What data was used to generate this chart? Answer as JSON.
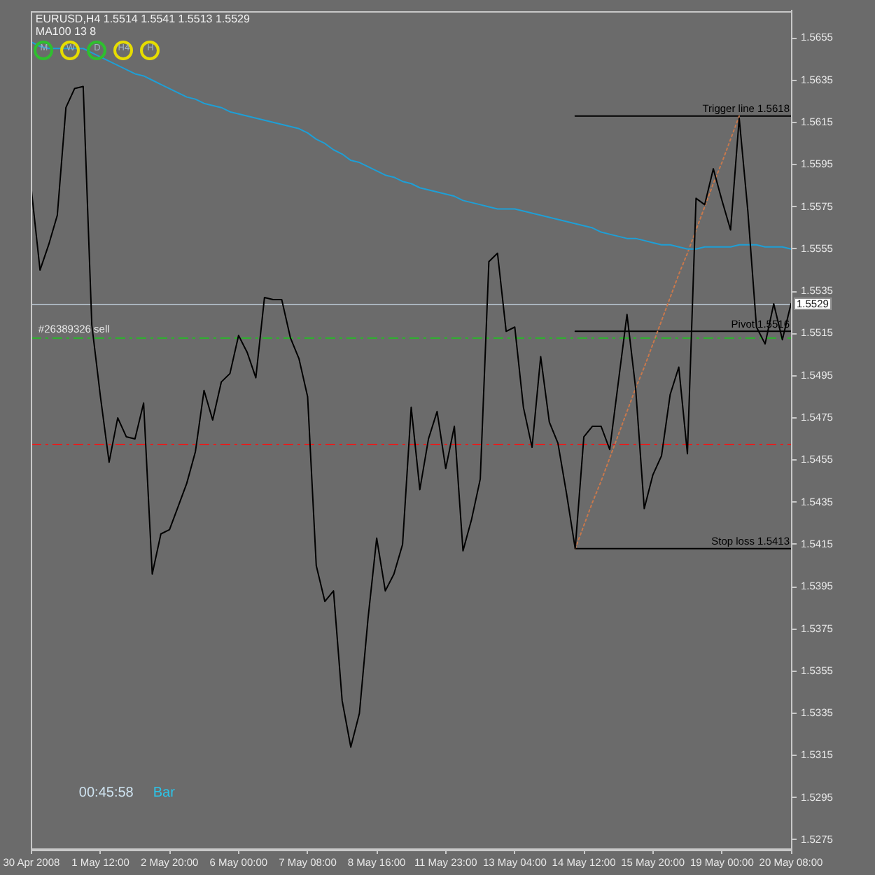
{
  "chart_data": {
    "type": "line",
    "title": "EURUSD,H4  1.5514 1.5541 1.5513 1.5529",
    "subtitle": "MA100 13 8",
    "categories": [
      "30 Apr 2008",
      null,
      null,
      null,
      null,
      null,
      null,
      null,
      "1 May 12:00",
      null,
      null,
      null,
      null,
      null,
      null,
      null,
      "2 May 20:00",
      null,
      null,
      null,
      null,
      null,
      null,
      null,
      "6 May 00:00",
      null,
      null,
      null,
      null,
      null,
      null,
      null,
      "7 May 08:00",
      null,
      null,
      null,
      null,
      null,
      null,
      null,
      "8 May 16:00",
      null,
      null,
      null,
      null,
      null,
      null,
      null,
      "11 May 23:00",
      null,
      null,
      null,
      null,
      null,
      null,
      null,
      "13 May 04:00",
      null,
      null,
      null,
      null,
      null,
      null,
      null,
      "14 May 12:00",
      null,
      null,
      null,
      null,
      null,
      null,
      null,
      "15 May 20:00",
      null,
      null,
      null,
      null,
      null,
      null,
      null,
      "19 May 00:00",
      null,
      null,
      null,
      null,
      null,
      null,
      null,
      "20 May 08:00"
    ],
    "series": [
      {
        "color": "#000000",
        "values": [
          1.5583,
          1.5545,
          1.5557,
          1.5571,
          1.5622,
          1.5631,
          1.5632,
          1.5519,
          1.5485,
          1.5454,
          1.5475,
          1.5466,
          1.5465,
          1.5482,
          1.5401,
          1.542,
          1.5422,
          1.5433,
          1.5444,
          1.5459,
          1.5488,
          1.5474,
          1.5492,
          1.5496,
          1.5514,
          1.5506,
          1.5494,
          1.5532,
          1.5531,
          1.5531,
          1.5513,
          1.5503,
          1.5485,
          1.5405,
          1.5388,
          1.5393,
          1.5341,
          1.5319,
          1.5335,
          1.538,
          1.5418,
          1.5393,
          1.5401,
          1.5415,
          1.548,
          1.5441,
          1.5465,
          1.5478,
          1.5451,
          1.5471,
          1.5412,
          1.5427,
          1.5446,
          1.5549,
          1.5553,
          1.5516,
          1.5518,
          1.548,
          1.5461,
          1.5504,
          1.5473,
          1.5463,
          1.5439,
          1.5413,
          1.5466,
          1.5471,
          1.5471,
          1.546,
          1.5492,
          1.5524,
          1.5489,
          1.5432,
          1.5448,
          1.5457,
          1.5486,
          1.5499,
          1.5458,
          1.5579,
          1.5576,
          1.5593,
          1.5578,
          1.5564,
          1.5617,
          1.5573,
          1.5518,
          1.551,
          1.5529,
          1.5512,
          1.5529
        ]
      },
      {
        "color": "#1e9fd6",
        "values": [
          1.5653,
          1.5651,
          1.565,
          1.565,
          1.565,
          1.565,
          1.565,
          1.5648,
          1.5646,
          1.5644,
          1.5642,
          1.564,
          1.5638,
          1.5637,
          1.5635,
          1.5633,
          1.5631,
          1.5629,
          1.5627,
          1.5626,
          1.5624,
          1.5623,
          1.5622,
          1.562,
          1.5619,
          1.5618,
          1.5617,
          1.5616,
          1.5615,
          1.5614,
          1.5613,
          1.5612,
          1.561,
          1.5607,
          1.5605,
          1.5602,
          1.56,
          1.5597,
          1.5596,
          1.5594,
          1.5592,
          1.559,
          1.5589,
          1.5587,
          1.5586,
          1.5584,
          1.5583,
          1.5582,
          1.5581,
          1.558,
          1.5578,
          1.5577,
          1.5576,
          1.5575,
          1.5574,
          1.5574,
          1.5574,
          1.5573,
          1.5572,
          1.5571,
          1.557,
          1.5569,
          1.5568,
          1.5567,
          1.5566,
          1.5565,
          1.5563,
          1.5562,
          1.5561,
          1.556,
          1.556,
          1.5559,
          1.5558,
          1.5557,
          1.5557,
          1.5556,
          1.5555,
          1.5555,
          1.5556,
          1.5556,
          1.5556,
          1.5556,
          1.5557,
          1.5557,
          1.5557,
          1.5556,
          1.5556,
          1.5556,
          1.5555
        ]
      },
      {
        "color": "#c8784c",
        "line_style": "dotted",
        "values": [
          null,
          null,
          null,
          null,
          null,
          null,
          null,
          null,
          null,
          null,
          null,
          null,
          null,
          null,
          null,
          null,
          null,
          null,
          null,
          null,
          null,
          null,
          null,
          null,
          null,
          null,
          null,
          null,
          null,
          null,
          null,
          null,
          null,
          null,
          null,
          null,
          null,
          null,
          null,
          null,
          null,
          null,
          null,
          null,
          null,
          null,
          null,
          null,
          null,
          null,
          null,
          null,
          null,
          null,
          null,
          null,
          null,
          null,
          null,
          null,
          null,
          null,
          null,
          1.5413,
          1.5424,
          1.5435,
          1.5445,
          1.5456,
          1.5467,
          1.5478,
          1.5489,
          1.5499,
          1.551,
          1.5521,
          1.5532,
          1.5543,
          1.5553,
          1.5564,
          1.5575,
          1.5586,
          1.5596,
          1.5607,
          1.5618,
          null,
          null,
          null,
          null,
          null,
          null
        ]
      },
      {
        "name": "Trigger line 1.5618",
        "color": "#000000",
        "values": [
          null,
          null,
          null,
          null,
          null,
          null,
          null,
          null,
          null,
          null,
          null,
          null,
          null,
          null,
          null,
          null,
          null,
          null,
          null,
          null,
          null,
          null,
          null,
          null,
          null,
          null,
          null,
          null,
          null,
          null,
          null,
          null,
          null,
          null,
          null,
          null,
          null,
          null,
          null,
          null,
          null,
          null,
          null,
          null,
          null,
          null,
          null,
          null,
          null,
          null,
          null,
          null,
          null,
          null,
          null,
          null,
          null,
          null,
          null,
          null,
          null,
          null,
          null,
          1.5618,
          1.5618,
          1.5618,
          1.5618,
          1.5618,
          1.5618,
          1.5618,
          1.5618,
          1.5618,
          1.5618,
          1.5618,
          1.5618,
          1.5618,
          1.5618,
          1.5618,
          1.5618,
          1.5618,
          1.5618,
          1.5618,
          1.5618,
          1.5618,
          1.5618,
          1.5618,
          1.5618,
          1.5618,
          1.5618
        ]
      },
      {
        "name": "Pivot 1.5516",
        "color": "#000000",
        "values": [
          null,
          null,
          null,
          null,
          null,
          null,
          null,
          null,
          null,
          null,
          null,
          null,
          null,
          null,
          null,
          null,
          null,
          null,
          null,
          null,
          null,
          null,
          null,
          null,
          null,
          null,
          null,
          null,
          null,
          null,
          null,
          null,
          null,
          null,
          null,
          null,
          null,
          null,
          null,
          null,
          null,
          null,
          null,
          null,
          null,
          null,
          null,
          null,
          null,
          null,
          null,
          null,
          null,
          null,
          null,
          null,
          null,
          null,
          null,
          null,
          null,
          null,
          null,
          1.5516,
          1.5516,
          1.5516,
          1.5516,
          1.5516,
          1.5516,
          1.5516,
          1.5516,
          1.5516,
          1.5516,
          1.5516,
          1.5516,
          1.5516,
          1.5516,
          1.5516,
          1.5516,
          1.5516,
          1.5516,
          1.5516,
          1.5516,
          1.5516,
          1.5516,
          1.5516,
          1.5516,
          1.5516,
          1.5516
        ]
      },
      {
        "name": "Stop loss 1.5413",
        "color": "#000000",
        "values": [
          null,
          null,
          null,
          null,
          null,
          null,
          null,
          null,
          null,
          null,
          null,
          null,
          null,
          null,
          null,
          null,
          null,
          null,
          null,
          null,
          null,
          null,
          null,
          null,
          null,
          null,
          null,
          null,
          null,
          null,
          null,
          null,
          null,
          null,
          null,
          null,
          null,
          null,
          null,
          null,
          null,
          null,
          null,
          null,
          null,
          null,
          null,
          null,
          null,
          null,
          null,
          null,
          null,
          null,
          null,
          null,
          null,
          null,
          null,
          null,
          null,
          null,
          null,
          1.5413,
          1.5413,
          1.5413,
          1.5413,
          1.5413,
          1.5413,
          1.5413,
          1.5413,
          1.5413,
          1.5413,
          1.5413,
          1.5413,
          1.5413,
          1.5413,
          1.5413,
          1.5413,
          1.5413,
          1.5413,
          1.5413,
          1.5413,
          1.5413,
          1.5413,
          1.5413,
          1.5413,
          1.5413,
          1.5413
        ]
      }
    ],
    "ylim": [
      1.5271,
      1.5668
    ],
    "yticks": [
      1.5275,
      1.5295,
      1.5315,
      1.5335,
      1.5355,
      1.5375,
      1.5395,
      1.5415,
      1.5435,
      1.5455,
      1.5475,
      1.5495,
      1.5515,
      1.5535,
      1.5555,
      1.5575,
      1.5595,
      1.5615,
      1.5635,
      1.5655
    ],
    "ref_lines": [
      {
        "axis": "y",
        "value": 1.5529,
        "label": "1.5529",
        "color": "#a9b4bd",
        "line_style": "solid"
      },
      {
        "axis": "y",
        "value": 1.5513,
        "label": "#26389326 sell",
        "color": "#2fb02f",
        "line_style": "dashed"
      },
      {
        "axis": "y",
        "value": 1.5463,
        "color": "#e02020",
        "line_style": "dashed"
      }
    ],
    "annotations": [
      "M",
      "W",
      "D",
      "H4",
      "H",
      "00:45:58",
      "Bar"
    ],
    "marker": "none",
    "line_style": "solid"
  }
}
